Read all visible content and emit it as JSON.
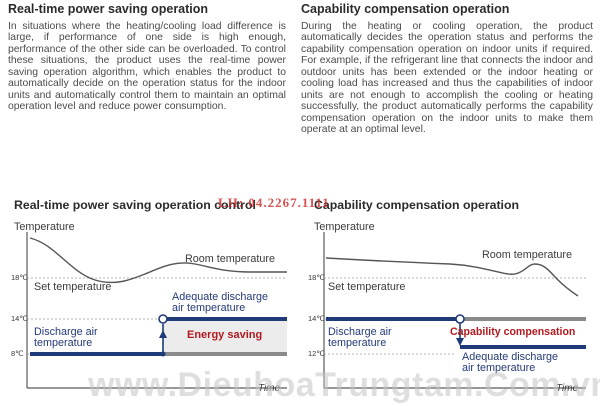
{
  "left_section": {
    "title": "Real-time power saving operation",
    "body": "In situations where the heating/cooling load difference is large, if performance of one side is high enough, performance of the other side can be overloaded. To control these situations, the product uses the real-time power saving operation algorithm, which enables the product to automatically decide on the operation status for the indoor units and automatically control them to maintain an optimal operation level and reduce power consumption."
  },
  "right_section": {
    "title": "Capability compensation operation",
    "body": "During the heating or cooling operation, the product automatically decides the operation status and performs the capability compensation operation on indoor units if required. For example, if the refrigerant line that connects the indoor and outdoor units has been extended or the indoor heating or cooling load has increased and thus the capabilities of indoor units are not enough to accomplish the cooling or heating successfully, the product automatically performs the capability compensation operation on the indoor units to make them operate at an optimal level."
  },
  "left_chart": {
    "title": "Real-time power saving operation control",
    "y_axis_label": "Temperature",
    "x_axis_label": "Time",
    "room_temperature": "Room temperature",
    "set_temperature": "Set temperature",
    "adequate_1": "Adequate discharge",
    "adequate_2": "air temperature",
    "discharge_1": "Discharge air",
    "discharge_2": "temperature",
    "highlight": "Energy saving",
    "ticks": [
      "18℃",
      "14℃",
      "8℃"
    ]
  },
  "right_chart": {
    "title": "Capability compensation operation",
    "y_axis_label": "Temperature",
    "x_axis_label": "Time",
    "room_temperature": "Room temperature",
    "set_temperature": "Set temperature",
    "adequate_1": "Adequate discharge",
    "adequate_2": "air temperature",
    "discharge_1": "Discharge air",
    "discharge_2": "temperature",
    "highlight": "Capability compensation",
    "ticks": [
      "18℃",
      "14℃",
      "12℃"
    ]
  },
  "watermarks": {
    "phone": "LH: 04.2267.1111",
    "site": "www.DieuhoaTrungtam.Com.vn"
  },
  "colors": {
    "dark_blue": "#1f3a78",
    "gray_band": "#8a8a8a",
    "highlight_red": "#b21a20"
  }
}
